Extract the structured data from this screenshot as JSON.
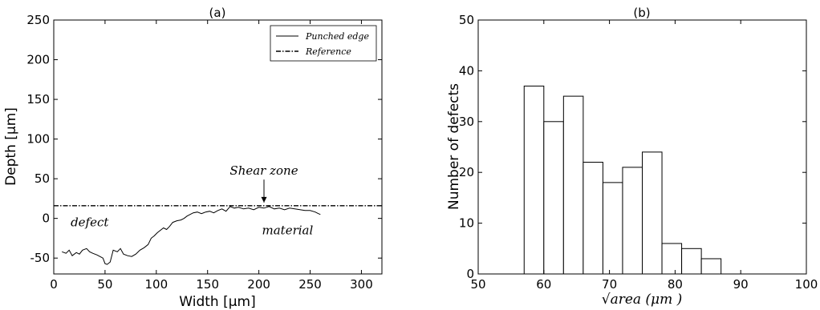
{
  "chart_data": [
    {
      "panel": "a",
      "type": "line",
      "title": "(a)",
      "xlabel": "Width [μm]",
      "ylabel": "Depth [μm]",
      "xlim": [
        0,
        320
      ],
      "ylim": [
        -70,
        250
      ],
      "xticks": [
        0,
        50,
        100,
        150,
        200,
        250,
        300
      ],
      "yticks": [
        -50,
        0,
        50,
        100,
        150,
        200,
        250
      ],
      "legend_position": "top-right",
      "series": [
        {
          "name": "Punched edge",
          "style": "solid",
          "x": [
            8,
            12,
            15,
            18,
            22,
            25,
            28,
            32,
            35,
            38,
            42,
            45,
            48,
            50,
            52,
            55,
            58,
            62,
            65,
            68,
            72,
            76,
            80,
            84,
            88,
            92,
            95,
            98,
            101,
            104,
            107,
            110,
            113,
            116,
            120,
            124,
            127,
            130,
            133,
            136,
            140,
            144,
            148,
            152,
            156,
            160,
            164,
            168,
            172,
            176,
            180,
            185,
            190,
            195,
            200,
            205,
            210,
            215,
            220,
            225,
            230,
            235,
            240,
            245,
            250,
            255,
            258,
            260
          ],
          "y": [
            -42,
            -44,
            -40,
            -47,
            -43,
            -45,
            -40,
            -38,
            -42,
            -44,
            -46,
            -48,
            -50,
            -57,
            -58,
            -55,
            -40,
            -42,
            -38,
            -45,
            -47,
            -48,
            -45,
            -40,
            -37,
            -33,
            -25,
            -22,
            -18,
            -15,
            -12,
            -14,
            -10,
            -5,
            -3,
            -2,
            0,
            3,
            5,
            7,
            8,
            6,
            8,
            9,
            7,
            10,
            12,
            9,
            15,
            13,
            14,
            12,
            13,
            11,
            14,
            13,
            15,
            12,
            13,
            11,
            13,
            12,
            11,
            10,
            10,
            8,
            6,
            5
          ]
        },
        {
          "name": "Reference",
          "style": "dash-dot",
          "y_constant": 16
        }
      ],
      "annotations": [
        {
          "text": "Shear zone",
          "x": 205,
          "y": 55,
          "arrow_to": [
            205,
            18
          ]
        },
        {
          "text": "defect",
          "x": 35,
          "y": -10
        },
        {
          "text": "material",
          "x": 228,
          "y": -20
        }
      ]
    },
    {
      "panel": "b",
      "type": "bar",
      "title": "(b)",
      "xlabel": "√area  (μm )",
      "ylabel": "Number of defects",
      "xlim": [
        50,
        100
      ],
      "ylim": [
        0,
        50
      ],
      "xticks": [
        50,
        60,
        70,
        80,
        90,
        100
      ],
      "yticks": [
        0,
        10,
        20,
        30,
        40,
        50
      ],
      "bin_edges": [
        57,
        60,
        63,
        66,
        69,
        72,
        75,
        78,
        81,
        84,
        87
      ],
      "values": [
        37,
        30,
        35,
        22,
        18,
        21,
        24,
        6,
        5,
        3
      ]
    }
  ]
}
